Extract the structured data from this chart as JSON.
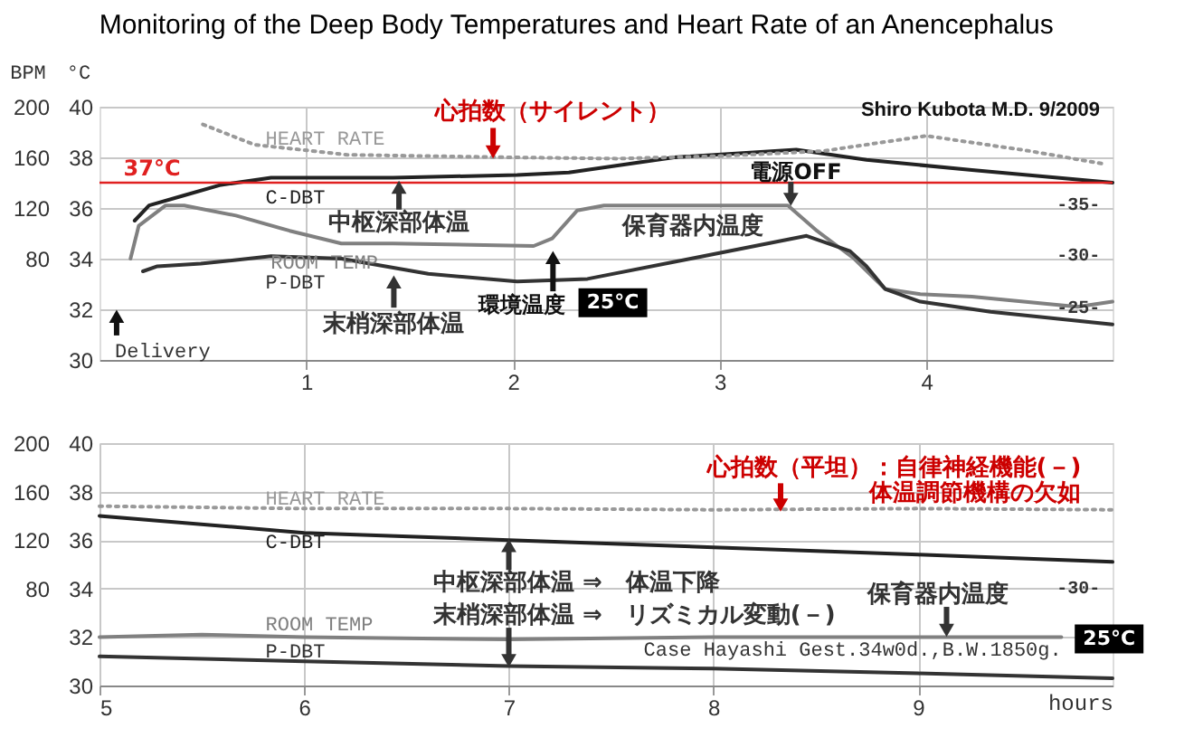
{
  "chart_data": [
    {
      "type": "line",
      "title": "Monitoring of the Deep Body Temperatures and Heart Rate of an Anencephalus",
      "ylabel": "°C",
      "y2label": "BPM",
      "xlim": [
        0,
        4.9
      ],
      "xticks": [
        1,
        2,
        3,
        4
      ],
      "ylim": [
        30,
        40
      ],
      "yticks": [
        30,
        32,
        34,
        36,
        38,
        40
      ],
      "y2lim": [
        0,
        200
      ],
      "y2ticks": [
        80,
        120,
        160,
        200
      ],
      "grid": true,
      "series": [
        {
          "name": "HEART RATE",
          "axis": "y2",
          "color": "#999999",
          "line_style": "dotted",
          "x": [
            0.5,
            0.75,
            1.2,
            2.0,
            2.5,
            3.0,
            3.5,
            4.0,
            4.5,
            4.85
          ],
          "values": [
            186,
            170,
            162,
            160,
            159,
            161,
            165,
            177,
            165,
            155
          ]
        },
        {
          "name": "C-DBT",
          "color": "#222222",
          "x": [
            0.17,
            0.24,
            0.41,
            0.58,
            0.83,
            1.42,
            2.02,
            2.27,
            2.78,
            3.37,
            3.71,
            4.22,
            4.9
          ],
          "values": [
            35.5,
            36.1,
            36.5,
            36.9,
            37.2,
            37.2,
            37.3,
            37.4,
            38.0,
            38.3,
            37.9,
            37.5,
            37.0
          ]
        },
        {
          "name": "ROOM TEMP",
          "color": "#808080",
          "x": [
            0.15,
            0.19,
            0.32,
            0.41,
            0.66,
            0.92,
            1.17,
            1.42,
            2.1,
            2.19,
            2.31,
            2.44,
            2.86,
            3.33,
            3.47,
            3.65,
            3.8,
            3.97,
            4.22,
            4.73,
            4.9
          ],
          "values": [
            34.0,
            35.3,
            36.1,
            36.1,
            35.7,
            35.1,
            34.6,
            34.6,
            34.5,
            34.8,
            35.9,
            36.1,
            36.1,
            36.1,
            35.1,
            34.0,
            32.8,
            32.6,
            32.5,
            32.1,
            32.3
          ]
        },
        {
          "name": "P-DBT",
          "color": "#333333",
          "x": [
            0.21,
            0.28,
            0.49,
            0.83,
            1.17,
            1.59,
            2.02,
            2.36,
            2.86,
            3.42,
            3.63,
            3.71,
            3.8,
            3.97,
            4.31,
            4.9
          ],
          "values": [
            33.5,
            33.7,
            33.8,
            34.1,
            34.0,
            33.4,
            33.1,
            33.2,
            34.0,
            34.9,
            34.3,
            33.7,
            32.8,
            32.3,
            31.9,
            31.4
          ]
        }
      ],
      "ref_lines": [
        {
          "axis": "y",
          "value": 37,
          "label": "37°C",
          "color": "#e02020"
        }
      ],
      "annotations": [
        "心拍数（サイレント）",
        "中枢深部体温",
        "末梢深部体温",
        "環境温度",
        "25°C",
        "保育器内温度",
        "電源OFF",
        "Delivery",
        "Shiro Kubota M.D.  9/2009",
        "-35-",
        "-30-",
        "-25-"
      ]
    },
    {
      "type": "line",
      "xlabel": "hours",
      "xlim": [
        5,
        9.95
      ],
      "xticks": [
        5,
        6,
        7,
        8,
        9
      ],
      "ylim": [
        30,
        40
      ],
      "yticks": [
        30,
        32,
        34,
        36,
        38,
        40
      ],
      "y2lim": [
        0,
        200
      ],
      "y2ticks": [
        80,
        120,
        160,
        200
      ],
      "grid": true,
      "series": [
        {
          "name": "HEART RATE",
          "axis": "y2",
          "color": "#999999",
          "line_style": "dotted",
          "x": [
            5,
            6,
            7,
            8,
            9,
            9.95
          ],
          "values": [
            148,
            146,
            146,
            145,
            146,
            145
          ]
        },
        {
          "name": "C-DBT",
          "color": "#222222",
          "x": [
            5,
            6,
            7,
            8,
            9,
            9.95
          ],
          "values": [
            37.0,
            36.3,
            36.0,
            35.7,
            35.4,
            35.1
          ]
        },
        {
          "name": "ROOM TEMP",
          "color": "#808080",
          "x": [
            5,
            5.5,
            6,
            7,
            8,
            9,
            9.7
          ],
          "values": [
            32.0,
            32.1,
            32.0,
            31.9,
            32.0,
            32.0,
            32.0
          ]
        },
        {
          "name": "P-DBT",
          "color": "#333333",
          "x": [
            5,
            6,
            7,
            8,
            9,
            9.95
          ],
          "values": [
            31.2,
            31.0,
            30.8,
            30.7,
            30.5,
            30.3
          ]
        }
      ],
      "annotations": [
        "心拍数（平坦）：自律神経機能(－)",
        "体温調節機構の欠如",
        {
          "text": "中枢深部体温 ⇒　体温下降",
          "x": 7,
          "y": 36.0
        },
        {
          "text": "末梢深部体温 ⇒　リズミカル変動(－)",
          "x": 7,
          "y": 30.8
        },
        "保育器内温度",
        "25°C",
        "-30-",
        "Case Hayashi Gest.34w0d.,B.W.1850g."
      ]
    }
  ]
}
